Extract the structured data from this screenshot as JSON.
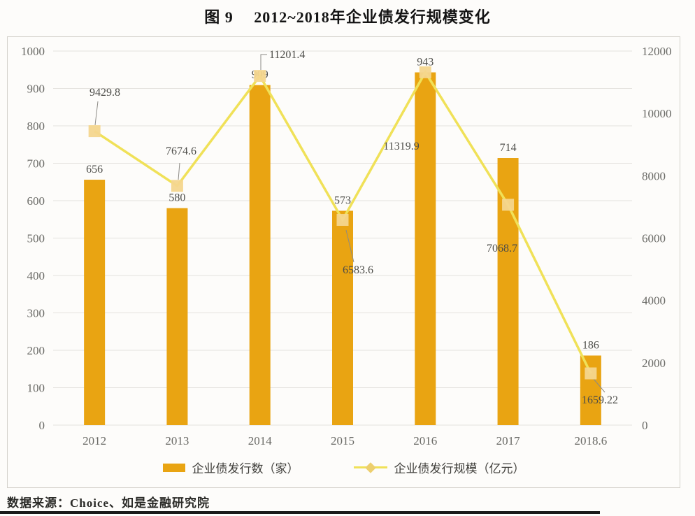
{
  "page": {
    "title": "图 9　 2012~2018年企业债发行规模变化",
    "source_note": "数据来源：Choice、如是金融研究院"
  },
  "chart_data": {
    "type": "combo-bar-line",
    "categories": [
      "2012",
      "2013",
      "2014",
      "2015",
      "2016",
      "2017",
      "2018.6"
    ],
    "series": [
      {
        "name": "企业债发行数（家）",
        "type": "bar",
        "axis": "left",
        "color": "#E9A412",
        "values": [
          656,
          580,
          909,
          573,
          943,
          714,
          186
        ]
      },
      {
        "name": "企业债发行规模（亿元）",
        "type": "line",
        "axis": "right",
        "line_color": "#F0E158",
        "marker_color": "#F4D68E",
        "values": [
          9429.8,
          7674.6,
          11201.4,
          6583.6,
          11319.9,
          7068.7,
          1659.22
        ]
      }
    ],
    "left_axis": {
      "min": 0,
      "max": 1000,
      "step": 100
    },
    "right_axis": {
      "min": 0,
      "max": 12000,
      "step": 2000
    },
    "grid": true,
    "legend_position": "bottom",
    "colors": {
      "gridline": "#E4E2DE",
      "axis_text": "#6A6A66",
      "label_text": "#4D4D49",
      "leader_line": "#8C8A85"
    }
  }
}
